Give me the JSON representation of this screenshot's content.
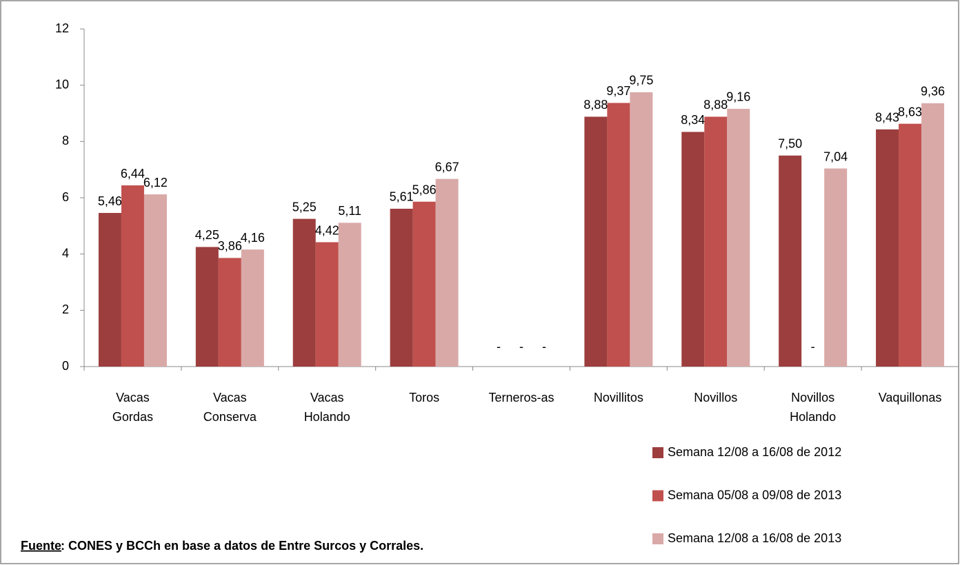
{
  "chart_data": {
    "type": "bar",
    "categories": [
      [
        "Vacas",
        "Gordas"
      ],
      [
        "Vacas",
        "Conserva"
      ],
      [
        "Vacas",
        "Holando"
      ],
      [
        "Toros"
      ],
      [
        "Terneros-as"
      ],
      [
        "Novillitos"
      ],
      [
        "Novillos"
      ],
      [
        "Novillos",
        "Holando"
      ],
      [
        "Vaquillonas"
      ]
    ],
    "series": [
      {
        "name": "Semana 12/08 a 16/08 de 2012",
        "color": "#9c3e3d",
        "values": [
          5.46,
          4.25,
          5.25,
          5.61,
          null,
          8.88,
          8.34,
          7.5,
          8.43
        ],
        "value_labels": [
          "5,46",
          "4,25",
          "5,25",
          "5,61",
          "-",
          "8,88",
          "8,34",
          "7,50",
          "8,43"
        ]
      },
      {
        "name": "Semana 05/08 a 09/08 de 2013",
        "color": "#c0504d",
        "values": [
          6.44,
          3.86,
          4.42,
          5.86,
          null,
          9.37,
          8.88,
          null,
          8.63
        ],
        "value_labels": [
          "6,44",
          "3,86",
          "4,42",
          "5,86",
          "-",
          "9,37",
          "8,88",
          "-",
          "8,63"
        ]
      },
      {
        "name": "Semana 12/08 a 16/08 de 2013",
        "color": "#d9a9a8",
        "values": [
          6.12,
          4.16,
          5.11,
          6.67,
          null,
          9.75,
          9.16,
          7.04,
          9.36
        ],
        "value_labels": [
          "6,12",
          "4,16",
          "5,11",
          "6,67",
          "-",
          "9,75",
          "9,16",
          "7,04",
          "9,36"
        ]
      }
    ],
    "ylim": [
      0,
      12
    ],
    "yticks": [
      0,
      2,
      4,
      6,
      8,
      10,
      12
    ],
    "grid": false,
    "legend": "bottom-right",
    "source_label": "Fuente",
    "source": ": CONES y BCCh en base a datos de Entre Surcos y Corrales."
  }
}
